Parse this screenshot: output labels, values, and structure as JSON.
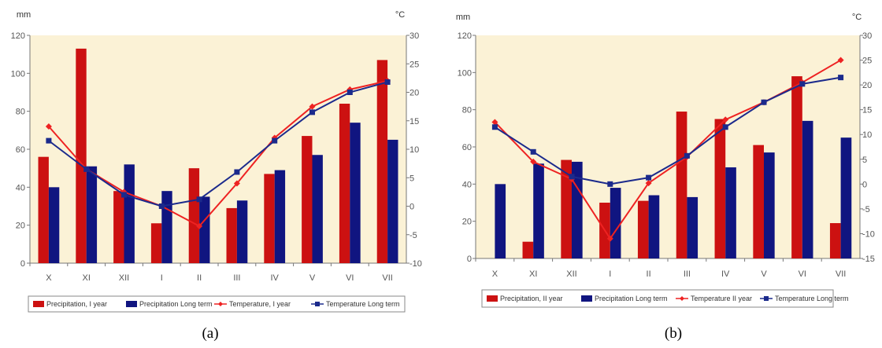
{
  "colors": {
    "plot_bg": "#fbf2d6",
    "precip_year": "#cc1111",
    "precip_long": "#101580",
    "temp_year": "#ee2222",
    "temp_long": "#1b2a8c"
  },
  "chart_data": [
    {
      "type": "bar",
      "panel_label": "(a)",
      "left_unit": "mm",
      "right_unit": "°C",
      "categories": [
        "X",
        "XI",
        "XII",
        "I",
        "II",
        "III",
        "IV",
        "V",
        "VI",
        "VII"
      ],
      "y_left_lim": [
        0,
        120
      ],
      "y_left_ticks": [
        "0",
        "20",
        "40",
        "60",
        "80",
        "100",
        "120"
      ],
      "y_right_lim": [
        -10,
        30
      ],
      "y_right_ticks": [
        "-10",
        "-5",
        "0",
        "5",
        "10",
        "15",
        "20",
        "25",
        "30"
      ],
      "grid": false,
      "legend_position": "bottom",
      "series": [
        {
          "name": "Precipitation, I year",
          "kind": "bar",
          "axis": "left",
          "color": "#cc1111",
          "values": [
            56,
            113,
            38,
            21,
            50,
            29,
            47,
            67,
            84,
            107
          ]
        },
        {
          "name": "Precipitation Long term",
          "kind": "bar",
          "axis": "left",
          "color": "#101580",
          "values": [
            40,
            51,
            52,
            38,
            35,
            33,
            49,
            57,
            74,
            65
          ]
        },
        {
          "name": "Temperature, I year",
          "kind": "line",
          "marker": "diamond",
          "axis": "right",
          "color": "#ee2222",
          "values": [
            14,
            6.5,
            2.5,
            0,
            -3.5,
            4,
            12,
            17.5,
            20.5,
            22
          ]
        },
        {
          "name": "Temperature Long term",
          "kind": "line",
          "marker": "square",
          "axis": "right",
          "color": "#1b2a8c",
          "values": [
            11.5,
            6.5,
            2,
            0,
            1.2,
            6,
            11.5,
            16.5,
            20,
            21.8
          ]
        }
      ]
    },
    {
      "type": "bar",
      "panel_label": "(b)",
      "left_unit": "mm",
      "right_unit": "°C",
      "categories": [
        "X",
        "XI",
        "XII",
        "I",
        "II",
        "III",
        "IV",
        "V",
        "VI",
        "VII"
      ],
      "y_left_lim": [
        0,
        120
      ],
      "y_left_ticks": [
        "0",
        "20",
        "40",
        "60",
        "80",
        "100",
        "120"
      ],
      "y_right_lim": [
        -15,
        30
      ],
      "y_right_ticks": [
        "-15",
        "-10",
        "-5",
        "0",
        "5",
        "10",
        "15",
        "20",
        "25",
        "30"
      ],
      "grid": false,
      "legend_position": "bottom",
      "series": [
        {
          "name": "Precipitation, II year",
          "kind": "bar",
          "axis": "left",
          "color": "#cc1111",
          "values": [
            0,
            9,
            53,
            30,
            31,
            79,
            75,
            61,
            98,
            19
          ]
        },
        {
          "name": "Precipitation Long term",
          "kind": "bar",
          "axis": "left",
          "color": "#101580",
          "values": [
            40,
            51,
            52,
            38,
            34,
            33,
            49,
            57,
            74,
            65
          ]
        },
        {
          "name": "Temperature II year",
          "kind": "line",
          "marker": "diamond",
          "axis": "right",
          "color": "#ee2222",
          "values": [
            12.5,
            4.5,
            1,
            -11,
            0.2,
            5.5,
            13,
            16.5,
            20.5,
            25
          ]
        },
        {
          "name": "Temperature Long term",
          "kind": "line",
          "marker": "square",
          "axis": "right",
          "color": "#1b2a8c",
          "values": [
            11.5,
            6.5,
            1.5,
            0,
            1.3,
            5.7,
            11.5,
            16.5,
            20.2,
            21.5
          ]
        }
      ]
    }
  ]
}
